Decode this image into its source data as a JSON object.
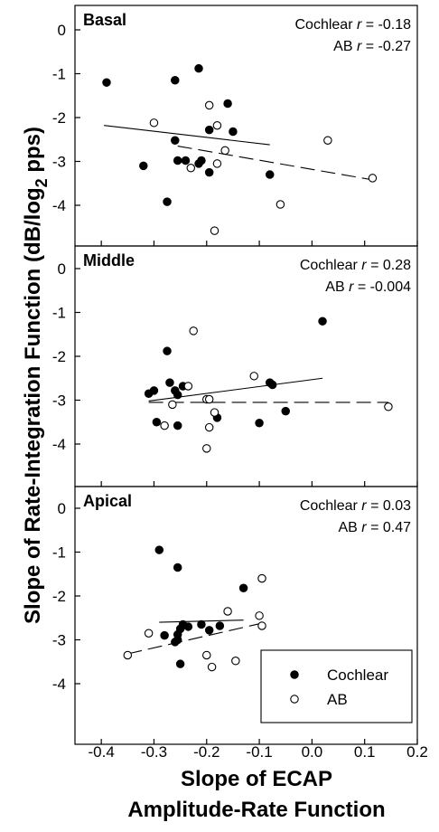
{
  "chart_data": {
    "type": "scatter",
    "xlabel_lines": [
      "Slope of ECAP",
      "Amplitude-Rate Function"
    ],
    "ylabel": "Slope of Rate-Integration Function (dB/log",
    "ylabel_sub": "2",
    "ylabel_end": " pps)",
    "xlim": [
      -0.45,
      0.2
    ],
    "ylim": [
      -5,
      0.5
    ],
    "x_ticks": [
      -0.4,
      -0.3,
      -0.2,
      -0.1,
      0.0,
      0.1,
      0.2
    ],
    "x_tick_labels": [
      "-0.4",
      "-0.3",
      "-0.2",
      "-0.1",
      "0.0",
      "0.1",
      "0.2"
    ],
    "y_ticks": [
      0,
      -1,
      -2,
      -3,
      -4
    ],
    "y_tick_labels": [
      "0",
      "-1",
      "-2",
      "-3",
      "-4"
    ],
    "legend": {
      "position": "bottom-right of apical panel",
      "entries": [
        {
          "label": "Cochlear",
          "marker": "filled-circle"
        },
        {
          "label": "AB",
          "marker": "open-circle"
        }
      ]
    },
    "panels": [
      {
        "title": "Basal",
        "stats": [
          {
            "prefix": "Cochlear ",
            "r": "r",
            "value": " = -0.18"
          },
          {
            "prefix": "AB ",
            "r": "r",
            "value": " = -0.27"
          }
        ],
        "series": [
          {
            "name": "Cochlear",
            "points": [
              [
                -0.39,
                -1.2
              ],
              [
                -0.26,
                -1.15
              ],
              [
                -0.215,
                -0.88
              ],
              [
                -0.16,
                -1.68
              ],
              [
                -0.195,
                -2.28
              ],
              [
                -0.15,
                -2.32
              ],
              [
                -0.26,
                -2.52
              ],
              [
                -0.32,
                -3.1
              ],
              [
                -0.255,
                -2.98
              ],
              [
                -0.24,
                -2.98
              ],
              [
                -0.21,
                -2.98
              ],
              [
                -0.215,
                -3.05
              ],
              [
                -0.195,
                -3.25
              ],
              [
                -0.08,
                -3.3
              ],
              [
                -0.275,
                -3.92
              ]
            ]
          },
          {
            "name": "AB",
            "points": [
              [
                -0.3,
                -2.12
              ],
              [
                -0.195,
                -1.72
              ],
              [
                -0.18,
                -2.18
              ],
              [
                -0.165,
                -2.75
              ],
              [
                -0.23,
                -3.15
              ],
              [
                -0.18,
                -3.05
              ],
              [
                0.03,
                -2.52
              ],
              [
                0.115,
                -3.38
              ],
              [
                -0.06,
                -3.98
              ],
              [
                -0.185,
                -4.58
              ]
            ]
          }
        ],
        "fits": [
          {
            "series": "Cochlear",
            "style": "solid",
            "from": [
              -0.395,
              -2.18
            ],
            "to": [
              -0.08,
              -2.62
            ]
          },
          {
            "series": "AB",
            "style": "dashed",
            "from": [
              -0.255,
              -2.65
            ],
            "to": [
              0.115,
              -3.42
            ]
          }
        ]
      },
      {
        "title": "Middle",
        "stats": [
          {
            "prefix": "Cochlear ",
            "r": "r",
            "value": " = 0.28"
          },
          {
            "prefix": "AB ",
            "r": "r",
            "value": " = -0.004"
          }
        ],
        "series": [
          {
            "name": "Cochlear",
            "points": [
              [
                0.02,
                -1.2
              ],
              [
                -0.275,
                -1.88
              ],
              [
                -0.27,
                -2.6
              ],
              [
                -0.26,
                -2.78
              ],
              [
                -0.255,
                -2.88
              ],
              [
                -0.31,
                -2.85
              ],
              [
                -0.3,
                -2.78
              ],
              [
                -0.295,
                -3.5
              ],
              [
                -0.255,
                -3.58
              ],
              [
                -0.245,
                -2.68
              ],
              [
                -0.18,
                -3.4
              ],
              [
                -0.1,
                -3.52
              ],
              [
                -0.08,
                -2.6
              ],
              [
                -0.075,
                -2.65
              ],
              [
                -0.05,
                -3.25
              ]
            ]
          },
          {
            "name": "AB",
            "points": [
              [
                -0.225,
                -1.42
              ],
              [
                -0.235,
                -2.68
              ],
              [
                -0.265,
                -3.1
              ],
              [
                -0.2,
                -2.98
              ],
              [
                -0.195,
                -2.98
              ],
              [
                -0.185,
                -3.28
              ],
              [
                -0.195,
                -3.62
              ],
              [
                -0.2,
                -4.1
              ],
              [
                -0.28,
                -3.58
              ],
              [
                -0.11,
                -2.45
              ],
              [
                0.145,
                -3.15
              ]
            ]
          }
        ],
        "fits": [
          {
            "series": "Cochlear",
            "style": "solid",
            "from": [
              -0.31,
              -3.02
            ],
            "to": [
              0.02,
              -2.5
            ]
          },
          {
            "series": "AB",
            "style": "dashed",
            "from": [
              -0.31,
              -3.05
            ],
            "to": [
              0.145,
              -3.05
            ]
          }
        ]
      },
      {
        "title": "Apical",
        "stats": [
          {
            "prefix": "Cochlear ",
            "r": "r",
            "value": " = 0.03"
          },
          {
            "prefix": "AB ",
            "r": "r",
            "value": " = 0.47"
          }
        ],
        "series": [
          {
            "name": "Cochlear",
            "points": [
              [
                -0.29,
                -0.95
              ],
              [
                -0.255,
                -1.35
              ],
              [
                -0.13,
                -1.82
              ],
              [
                -0.245,
                -2.65
              ],
              [
                -0.235,
                -2.7
              ],
              [
                -0.25,
                -2.75
              ],
              [
                -0.28,
                -2.9
              ],
              [
                -0.21,
                -2.65
              ],
              [
                -0.195,
                -2.78
              ],
              [
                -0.175,
                -2.68
              ],
              [
                -0.255,
                -2.88
              ],
              [
                -0.26,
                -3.05
              ],
              [
                -0.255,
                -3.0
              ],
              [
                -0.25,
                -3.55
              ]
            ]
          },
          {
            "name": "AB",
            "points": [
              [
                -0.31,
                -2.85
              ],
              [
                -0.35,
                -3.35
              ],
              [
                -0.16,
                -2.35
              ],
              [
                -0.1,
                -2.45
              ],
              [
                -0.095,
                -1.6
              ],
              [
                -0.095,
                -2.68
              ],
              [
                -0.2,
                -3.35
              ],
              [
                -0.19,
                -3.62
              ],
              [
                -0.145,
                -3.48
              ]
            ]
          }
        ],
        "fits": [
          {
            "series": "Cochlear",
            "style": "solid",
            "from": [
              -0.29,
              -2.6
            ],
            "to": [
              -0.13,
              -2.55
            ]
          },
          {
            "series": "AB",
            "style": "dashed",
            "from": [
              -0.35,
              -3.32
            ],
            "to": [
              -0.095,
              -2.62
            ]
          }
        ]
      }
    ]
  }
}
